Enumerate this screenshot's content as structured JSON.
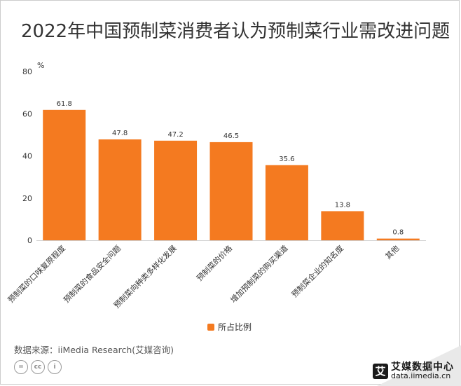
{
  "title": "2022年中国预制菜消费者认为预制菜行业需改进问题",
  "chart_data": {
    "type": "bar",
    "categories": [
      "预制菜的口味复原程度",
      "预制菜的食品安全问题",
      "预制菜向种类多样化发展",
      "预制菜的价格",
      "增加预制菜的购买渠道",
      "预制菜企业的知名度",
      "其他"
    ],
    "series": [
      {
        "name": "所占比例",
        "values": [
          61.8,
          47.8,
          47.2,
          46.5,
          35.6,
          13.8,
          0.8
        ],
        "color": "#f47a20"
      }
    ],
    "y_unit": "%",
    "ylim": [
      0,
      80
    ],
    "yticks": [
      0,
      20,
      40,
      60,
      80
    ],
    "grid": false,
    "legend_position": "bottom-center"
  },
  "footer": {
    "source": "数据来源：iiMedia Research(艾媒咨询)",
    "license_icons": [
      "equals-icon",
      "cc-icon",
      "person-icon"
    ],
    "license_glyphs": [
      "=",
      "cc",
      "i"
    ],
    "logo_mark": "艾",
    "logo_name": "艾媒数据中心",
    "logo_url": "data.iimedia.cn"
  }
}
